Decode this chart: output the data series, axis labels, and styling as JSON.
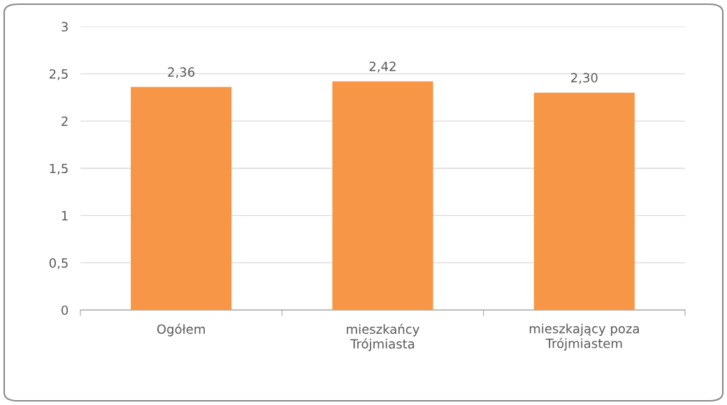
{
  "chart_data": {
    "type": "bar",
    "categories": [
      "Ogółem",
      "mieszkańcy\nTrójmiasta",
      "mieszkający poza\nTrójmiastem"
    ],
    "values": [
      2.36,
      2.42,
      2.3
    ],
    "value_labels": [
      "2,36",
      "2,42",
      "2,30"
    ],
    "color": "#f79646",
    "ylim": [
      0,
      3
    ],
    "yticks": [
      0,
      {
        "value": 0.5,
        "label": "0,5"
      },
      1,
      {
        "value": 1.5,
        "label": "1,5"
      },
      2,
      {
        "value": 2.5,
        "label": "2,5"
      },
      3
    ],
    "grid": "y"
  }
}
